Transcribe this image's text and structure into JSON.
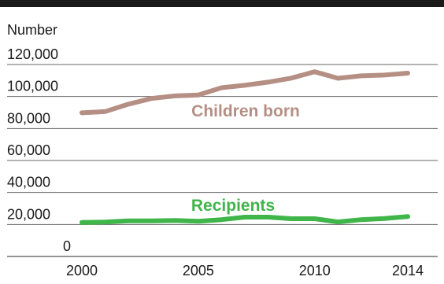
{
  "chart_data": {
    "type": "line",
    "title": "",
    "ylabel": "Number",
    "xlabel": "",
    "x": [
      2000,
      2001,
      2002,
      2003,
      2004,
      2005,
      2006,
      2007,
      2008,
      2009,
      2010,
      2011,
      2012,
      2013,
      2014
    ],
    "x_ticks": [
      2000,
      2005,
      2010,
      2014
    ],
    "x_tick_labels": [
      "2000",
      "2005",
      "2010",
      "2014"
    ],
    "y_ticks": [
      0,
      20000,
      40000,
      60000,
      80000,
      100000,
      120000
    ],
    "y_tick_labels": [
      "0",
      "20,000",
      "40,000",
      "60,000",
      "80,000",
      "100,000",
      "120,000"
    ],
    "xlim": [
      2000,
      2014
    ],
    "ylim": [
      0,
      120000
    ],
    "grid": "horizontal",
    "legend": "inline labels",
    "series": [
      {
        "name": "Children born",
        "color": "#b58f84",
        "values": [
          89800,
          90600,
          95200,
          98800,
          100400,
          100900,
          105500,
          107000,
          109000,
          111500,
          115500,
          111400,
          112900,
          113400,
          114600
        ]
      },
      {
        "name": "Recipients",
        "color": "#3fb54a",
        "values": [
          21300,
          21500,
          22300,
          22300,
          22500,
          22000,
          23000,
          24600,
          24600,
          23600,
          23600,
          21600,
          23000,
          23700,
          25000
        ]
      }
    ]
  }
}
